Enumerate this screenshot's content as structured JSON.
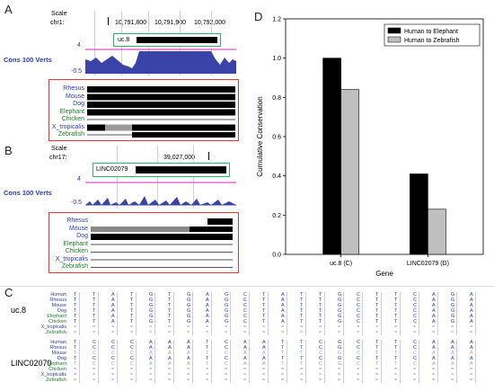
{
  "panelA": {
    "label": "A",
    "scale_label": "Scale",
    "chr_label": "chr1:",
    "ticks": [
      "10,791,800",
      "10,791,900",
      "10,792,000"
    ],
    "gene_label": "uc.8",
    "track_label": "Cons 100 Verts",
    "y_top": "4",
    "y_bottom": "-0.5",
    "species": [
      "Rhesus",
      "Mouse",
      "Dog",
      "Elephant",
      "Chicken",
      "X_tropicalis",
      "Zebrafish"
    ]
  },
  "panelB": {
    "label": "B",
    "scale_label": "Scale",
    "chr_label": "chr17:",
    "ticks": [
      "39,027,000"
    ],
    "gene_label": "LINC02079",
    "track_label": "Cons 100 Verts",
    "y_top": "4",
    "y_bottom": "-0.5",
    "species": [
      "Rhesus",
      "Mouse",
      "Dog",
      "Elephant",
      "Chicken",
      "X_tropicalis",
      "Zebrafish"
    ]
  },
  "panelC": {
    "label": "C",
    "row1_label": "uc.8",
    "row2_label": "LINC02079",
    "species": [
      "Human",
      "Rhesus",
      "Mouse",
      "Dog",
      "Elephant",
      "Chicken",
      "X_tropicalis",
      "Zebrafish"
    ],
    "uc8_seq": [
      "T",
      "T",
      "A",
      "T",
      "G",
      "T",
      "G",
      "A",
      "G",
      "C",
      "T",
      "A",
      "T",
      "T",
      "G",
      "C",
      "T",
      "T",
      "C",
      "A",
      "G",
      "A"
    ],
    "linc_seq": [
      "T",
      "C",
      "C",
      "C",
      "A",
      "A",
      "A",
      "T",
      "C",
      "A",
      "A",
      "T",
      "T",
      "C",
      "G",
      "C",
      "T",
      "T",
      "C",
      "A",
      "A",
      "A"
    ]
  },
  "panelD": {
    "label": "D"
  },
  "colors": {
    "elephant": "#000000",
    "zebrafish": "#bfbfbf",
    "red_box": "#e33333",
    "green_box": "#2db36b",
    "track_blue": "#2a3db0",
    "track_pink": "#e64fc8"
  },
  "chart_data": {
    "type": "bar",
    "xlabel": "Gene",
    "ylabel": "Cumulative Conservation",
    "ylim": [
      0,
      1.2
    ],
    "yticks": [
      "0.0",
      "0.2",
      "0.4",
      "0.6",
      "0.8",
      "1.0",
      "1.2"
    ],
    "categories": [
      "uc.8 (C)",
      "LINC02079 (D)"
    ],
    "series": [
      {
        "name": "Human to Elephant",
        "values": [
          1.0,
          0.41
        ]
      },
      {
        "name": "Human to Zebrafish",
        "values": [
          0.84,
          0.23
        ]
      }
    ],
    "legend": "top-right",
    "grid": false
  }
}
